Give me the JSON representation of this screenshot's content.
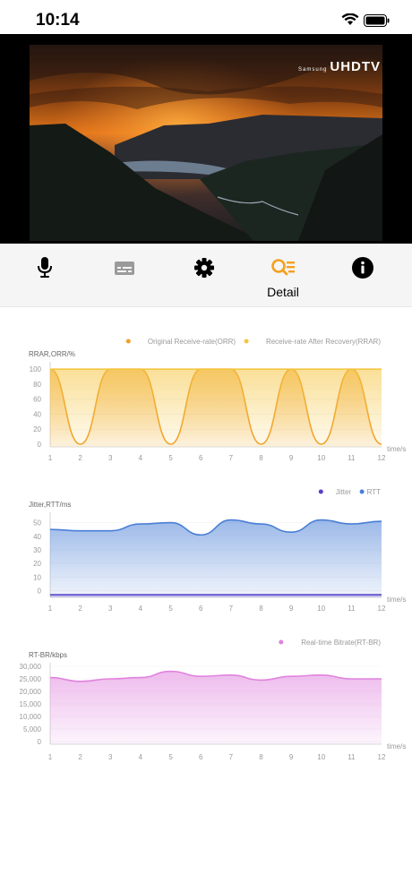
{
  "status": {
    "time": "10:14"
  },
  "video": {
    "watermark_small": "Samsung",
    "watermark": "UHDTV"
  },
  "toolbar": {
    "items": [
      {
        "icon": "microphone-icon"
      },
      {
        "icon": "subtitles-icon"
      },
      {
        "icon": "gear-icon"
      },
      {
        "icon": "detail-search-icon",
        "label": "Detail",
        "active": true
      },
      {
        "icon": "info-icon"
      }
    ],
    "active_color": "#f5a020"
  },
  "chart_data": [
    {
      "type": "area",
      "ylabel": "RRAR,ORR/%",
      "xlabel": "time/s",
      "x": [
        1,
        2,
        3,
        4,
        5,
        6,
        7,
        8,
        9,
        10,
        11,
        12
      ],
      "yticks": [
        0,
        20,
        40,
        60,
        80,
        100
      ],
      "ylim": [
        0,
        105
      ],
      "legend_position": "top-right",
      "series": [
        {
          "name": "Original Receive-rate(ORR)",
          "color": "#f0a02a",
          "values": [
            100,
            0,
            100,
            100,
            0,
            100,
            100,
            0,
            100,
            0,
            100,
            0
          ]
        },
        {
          "name": "Receive-rate After Recovery(RRAR)",
          "color": "#f5c542",
          "values": [
            100,
            100,
            100,
            100,
            100,
            100,
            100,
            100,
            100,
            100,
            100,
            100
          ]
        }
      ]
    },
    {
      "type": "area",
      "ylabel": "Jitter,RTT/ms",
      "xlabel": "time/s",
      "x": [
        1,
        2,
        3,
        4,
        5,
        6,
        7,
        8,
        9,
        10,
        11,
        12
      ],
      "yticks": [
        0,
        10,
        20,
        30,
        40,
        50
      ],
      "ylim": [
        -3,
        55
      ],
      "legend_position": "top-right",
      "series": [
        {
          "name": "Jitter",
          "color": "#5b3fc8",
          "values": [
            -3,
            -3,
            -3,
            -3,
            -3,
            -3,
            -3,
            -3,
            -3,
            -3,
            -3,
            -3
          ]
        },
        {
          "name": "RTT",
          "color": "#4a7fd6",
          "values": [
            45,
            44,
            44,
            49,
            50,
            41,
            52,
            49,
            43,
            52,
            49,
            51
          ]
        }
      ]
    },
    {
      "type": "area",
      "ylabel": "RT-BR/kbps",
      "xlabel": "time/s",
      "x": [
        1,
        2,
        3,
        4,
        5,
        6,
        7,
        8,
        9,
        10,
        11,
        12
      ],
      "yticks": [
        0,
        5000,
        10000,
        15000,
        20000,
        25000,
        30000
      ],
      "ytick_labels": [
        "0",
        "5,000",
        "10,000",
        "15,000",
        "20,000",
        "25,000",
        "30,000"
      ],
      "ylim": [
        0,
        30000
      ],
      "legend_position": "top-right",
      "series": [
        {
          "name": "Real-time Bitrate(RT-BR)",
          "color": "#e083de",
          "values": [
            25500,
            24000,
            25000,
            25500,
            28000,
            26000,
            26500,
            24500,
            26000,
            26500,
            25000,
            25000
          ]
        }
      ]
    }
  ]
}
